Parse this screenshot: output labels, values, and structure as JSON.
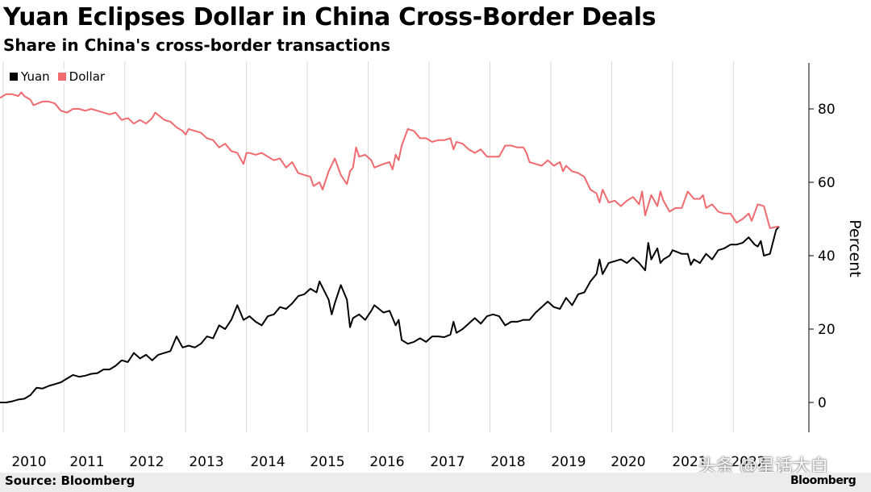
{
  "title": "Yuan Eclipses Dollar in China Cross-Border Deals",
  "subtitle": "Share in China's cross-border transactions",
  "source": "Source: Bloomberg",
  "watermark": "头条 @星话大白",
  "logo_text": "Bloomberg",
  "colors": {
    "yuan": "#000000",
    "dollar": "#f06a6e",
    "grid": "#d9d9d9",
    "axis": "#000000",
    "background": "#ffffff"
  },
  "chart_data": {
    "type": "line",
    "title": "Yuan Eclipses Dollar in China Cross-Border Deals",
    "subtitle": "Share in China's cross-border transactions",
    "xlabel": "",
    "ylabel": "Percent",
    "xlim": [
      2010.0,
      2023.25
    ],
    "ylim": [
      -8,
      92
    ],
    "grid": "vertical",
    "legend_position": "top-left",
    "x_ticks": [
      "2010",
      "2011",
      "2012",
      "2013",
      "2014",
      "2015",
      "2016",
      "2017",
      "2018",
      "2019",
      "2020",
      "2021",
      "2022"
    ],
    "y_ticks": [
      0,
      20,
      40,
      60,
      80
    ],
    "series": [
      {
        "name": "Yuan",
        "color": "#000000",
        "points": [
          [
            2010.0,
            0
          ],
          [
            2010.1,
            0
          ],
          [
            2010.2,
            0.3
          ],
          [
            2010.3,
            0.8
          ],
          [
            2010.4,
            1
          ],
          [
            2010.5,
            2
          ],
          [
            2010.6,
            4
          ],
          [
            2010.7,
            3.8
          ],
          [
            2010.8,
            4.5
          ],
          [
            2010.9,
            5
          ],
          [
            2011.0,
            5.5
          ],
          [
            2011.1,
            6.5
          ],
          [
            2011.2,
            7.5
          ],
          [
            2011.3,
            7
          ],
          [
            2011.4,
            7.3
          ],
          [
            2011.5,
            7.8
          ],
          [
            2011.6,
            8
          ],
          [
            2011.7,
            9
          ],
          [
            2011.8,
            9
          ],
          [
            2011.9,
            10
          ],
          [
            2012.0,
            11.5
          ],
          [
            2012.1,
            11
          ],
          [
            2012.2,
            13.5
          ],
          [
            2012.3,
            12
          ],
          [
            2012.4,
            13
          ],
          [
            2012.5,
            11.5
          ],
          [
            2012.6,
            13
          ],
          [
            2012.7,
            13.5
          ],
          [
            2012.8,
            14
          ],
          [
            2012.9,
            18
          ],
          [
            2013.0,
            15
          ],
          [
            2013.1,
            15.5
          ],
          [
            2013.2,
            15
          ],
          [
            2013.3,
            16
          ],
          [
            2013.4,
            18
          ],
          [
            2013.5,
            17.5
          ],
          [
            2013.6,
            21
          ],
          [
            2013.7,
            20
          ],
          [
            2013.8,
            22.5
          ],
          [
            2013.9,
            26.5
          ],
          [
            2014.0,
            22.5
          ],
          [
            2014.1,
            23.5
          ],
          [
            2014.2,
            22
          ],
          [
            2014.3,
            21
          ],
          [
            2014.4,
            23.5
          ],
          [
            2014.5,
            24
          ],
          [
            2014.6,
            26
          ],
          [
            2014.7,
            25.5
          ],
          [
            2014.8,
            27
          ],
          [
            2014.9,
            29
          ],
          [
            2015.0,
            29.5
          ],
          [
            2015.1,
            31
          ],
          [
            2015.2,
            30
          ],
          [
            2015.25,
            33
          ],
          [
            2015.4,
            28
          ],
          [
            2015.45,
            24
          ],
          [
            2015.5,
            27
          ],
          [
            2015.6,
            32
          ],
          [
            2015.7,
            28
          ],
          [
            2015.75,
            20.5
          ],
          [
            2015.8,
            23
          ],
          [
            2015.9,
            24
          ],
          [
            2016.0,
            22.5
          ],
          [
            2016.1,
            25
          ],
          [
            2016.15,
            26.5
          ],
          [
            2016.3,
            24.5
          ],
          [
            2016.4,
            25
          ],
          [
            2016.5,
            21
          ],
          [
            2016.55,
            22.5
          ],
          [
            2016.6,
            17
          ],
          [
            2016.7,
            16
          ],
          [
            2016.8,
            16.5
          ],
          [
            2016.9,
            17.5
          ],
          [
            2017.0,
            16.5
          ],
          [
            2017.1,
            18
          ],
          [
            2017.2,
            18
          ],
          [
            2017.3,
            17.8
          ],
          [
            2017.4,
            18.5
          ],
          [
            2017.45,
            22
          ],
          [
            2017.5,
            19
          ],
          [
            2017.6,
            20
          ],
          [
            2017.7,
            21.5
          ],
          [
            2017.8,
            23
          ],
          [
            2017.9,
            21.5
          ],
          [
            2018.0,
            23.5
          ],
          [
            2018.1,
            24
          ],
          [
            2018.2,
            23.5
          ],
          [
            2018.3,
            21
          ],
          [
            2018.4,
            22
          ],
          [
            2018.5,
            22
          ],
          [
            2018.6,
            22.5
          ],
          [
            2018.7,
            22.5
          ],
          [
            2018.8,
            24.5
          ],
          [
            2018.9,
            26
          ],
          [
            2019.0,
            27.5
          ],
          [
            2019.1,
            26
          ],
          [
            2019.2,
            25.5
          ],
          [
            2019.3,
            28.5
          ],
          [
            2019.4,
            26.5
          ],
          [
            2019.5,
            29.5
          ],
          [
            2019.6,
            30
          ],
          [
            2019.7,
            33
          ],
          [
            2019.8,
            35
          ],
          [
            2019.85,
            39
          ],
          [
            2019.9,
            35
          ],
          [
            2020.0,
            38
          ],
          [
            2020.1,
            38.5
          ],
          [
            2020.2,
            39
          ],
          [
            2020.3,
            38
          ],
          [
            2020.4,
            39.5
          ],
          [
            2020.5,
            38
          ],
          [
            2020.6,
            36
          ],
          [
            2020.65,
            43.5
          ],
          [
            2020.7,
            39
          ],
          [
            2020.8,
            42
          ],
          [
            2020.85,
            38
          ],
          [
            2020.9,
            39
          ],
          [
            2021.0,
            40
          ],
          [
            2021.05,
            41.5
          ],
          [
            2021.2,
            40.5
          ],
          [
            2021.3,
            40.5
          ],
          [
            2021.35,
            37.5
          ],
          [
            2021.4,
            39
          ],
          [
            2021.5,
            38
          ],
          [
            2021.6,
            40.5
          ],
          [
            2021.7,
            39
          ],
          [
            2021.8,
            41.5
          ],
          [
            2021.9,
            42
          ],
          [
            2022.0,
            43
          ],
          [
            2022.1,
            43
          ],
          [
            2022.2,
            43.5
          ],
          [
            2022.3,
            45
          ],
          [
            2022.4,
            43
          ],
          [
            2022.45,
            42.5
          ],
          [
            2022.5,
            44
          ],
          [
            2022.55,
            40
          ],
          [
            2022.65,
            40.5
          ],
          [
            2022.75,
            47
          ],
          [
            2022.8,
            48
          ]
        ]
      },
      {
        "name": "Dollar",
        "color": "#f06a6e",
        "points": [
          [
            2010.0,
            83
          ],
          [
            2010.1,
            84
          ],
          [
            2010.2,
            84
          ],
          [
            2010.3,
            83.5
          ],
          [
            2010.35,
            84.5
          ],
          [
            2010.4,
            83.5
          ],
          [
            2010.5,
            82.5
          ],
          [
            2010.55,
            81
          ],
          [
            2010.7,
            82
          ],
          [
            2010.8,
            82
          ],
          [
            2010.9,
            81.5
          ],
          [
            2011.0,
            79.5
          ],
          [
            2011.1,
            79
          ],
          [
            2011.2,
            80
          ],
          [
            2011.3,
            80
          ],
          [
            2011.4,
            79.5
          ],
          [
            2011.5,
            80
          ],
          [
            2011.6,
            79.5
          ],
          [
            2011.7,
            79
          ],
          [
            2011.8,
            78.5
          ],
          [
            2011.9,
            79
          ],
          [
            2012.0,
            77
          ],
          [
            2012.1,
            77.5
          ],
          [
            2012.2,
            76
          ],
          [
            2012.3,
            77
          ],
          [
            2012.4,
            76
          ],
          [
            2012.5,
            77.5
          ],
          [
            2012.55,
            79
          ],
          [
            2012.7,
            77
          ],
          [
            2012.8,
            76.5
          ],
          [
            2012.9,
            75
          ],
          [
            2013.0,
            74
          ],
          [
            2013.05,
            73
          ],
          [
            2013.1,
            74.5
          ],
          [
            2013.2,
            74
          ],
          [
            2013.3,
            73.5
          ],
          [
            2013.4,
            72
          ],
          [
            2013.5,
            71.5
          ],
          [
            2013.6,
            69.5
          ],
          [
            2013.7,
            70.5
          ],
          [
            2013.8,
            68.5
          ],
          [
            2013.9,
            68
          ],
          [
            2014.0,
            65
          ],
          [
            2014.05,
            68
          ],
          [
            2014.1,
            68
          ],
          [
            2014.2,
            67.5
          ],
          [
            2014.3,
            68
          ],
          [
            2014.4,
            67
          ],
          [
            2014.5,
            66
          ],
          [
            2014.6,
            66.5
          ],
          [
            2014.7,
            64
          ],
          [
            2014.8,
            65.5
          ],
          [
            2014.9,
            62.5
          ],
          [
            2015.0,
            62
          ],
          [
            2015.1,
            61.5
          ],
          [
            2015.15,
            59
          ],
          [
            2015.25,
            60
          ],
          [
            2015.3,
            58
          ],
          [
            2015.4,
            63
          ],
          [
            2015.5,
            66.5
          ],
          [
            2015.6,
            62
          ],
          [
            2015.7,
            59.5
          ],
          [
            2015.75,
            63
          ],
          [
            2015.8,
            64
          ],
          [
            2015.85,
            69.5
          ],
          [
            2015.9,
            67
          ],
          [
            2016.0,
            67.5
          ],
          [
            2016.1,
            66
          ],
          [
            2016.15,
            64
          ],
          [
            2016.3,
            65
          ],
          [
            2016.4,
            65.5
          ],
          [
            2016.45,
            63.5
          ],
          [
            2016.5,
            67.5
          ],
          [
            2016.55,
            66
          ],
          [
            2016.6,
            70
          ],
          [
            2016.7,
            74.5
          ],
          [
            2016.8,
            74
          ],
          [
            2016.9,
            72
          ],
          [
            2017.0,
            72
          ],
          [
            2017.1,
            71
          ],
          [
            2017.2,
            71.5
          ],
          [
            2017.3,
            71.5
          ],
          [
            2017.4,
            72
          ],
          [
            2017.45,
            69
          ],
          [
            2017.5,
            71
          ],
          [
            2017.6,
            70.5
          ],
          [
            2017.7,
            69
          ],
          [
            2017.8,
            68
          ],
          [
            2017.9,
            69
          ],
          [
            2018.0,
            67
          ],
          [
            2018.1,
            67
          ],
          [
            2018.2,
            67
          ],
          [
            2018.3,
            70
          ],
          [
            2018.4,
            70
          ],
          [
            2018.5,
            69.5
          ],
          [
            2018.6,
            69.5
          ],
          [
            2018.65,
            68
          ],
          [
            2018.7,
            65.5
          ],
          [
            2018.8,
            65
          ],
          [
            2018.9,
            64.5
          ],
          [
            2019.0,
            66
          ],
          [
            2019.1,
            64.5
          ],
          [
            2019.2,
            65.5
          ],
          [
            2019.25,
            63
          ],
          [
            2019.3,
            64.5
          ],
          [
            2019.4,
            63
          ],
          [
            2019.5,
            62.5
          ],
          [
            2019.6,
            61.5
          ],
          [
            2019.7,
            58
          ],
          [
            2019.8,
            57
          ],
          [
            2019.85,
            54.5
          ],
          [
            2019.9,
            58
          ],
          [
            2020.0,
            54.5
          ],
          [
            2020.1,
            55
          ],
          [
            2020.2,
            53.5
          ],
          [
            2020.3,
            55
          ],
          [
            2020.4,
            56
          ],
          [
            2020.5,
            54
          ],
          [
            2020.55,
            57.5
          ],
          [
            2020.6,
            51
          ],
          [
            2020.7,
            56.5
          ],
          [
            2020.8,
            53.5
          ],
          [
            2020.85,
            57.5
          ],
          [
            2020.9,
            55
          ],
          [
            2021.0,
            52
          ],
          [
            2021.1,
            53
          ],
          [
            2021.2,
            53
          ],
          [
            2021.3,
            57.5
          ],
          [
            2021.4,
            55.5
          ],
          [
            2021.5,
            55.5
          ],
          [
            2021.55,
            56.5
          ],
          [
            2021.6,
            53
          ],
          [
            2021.7,
            54
          ],
          [
            2021.8,
            52
          ],
          [
            2021.9,
            51.5
          ],
          [
            2022.0,
            51.5
          ],
          [
            2022.1,
            49
          ],
          [
            2022.2,
            50
          ],
          [
            2022.3,
            51.5
          ],
          [
            2022.35,
            49.5
          ],
          [
            2022.45,
            54
          ],
          [
            2022.55,
            53.5
          ],
          [
            2022.65,
            47.5
          ],
          [
            2022.8,
            48
          ]
        ]
      }
    ]
  }
}
